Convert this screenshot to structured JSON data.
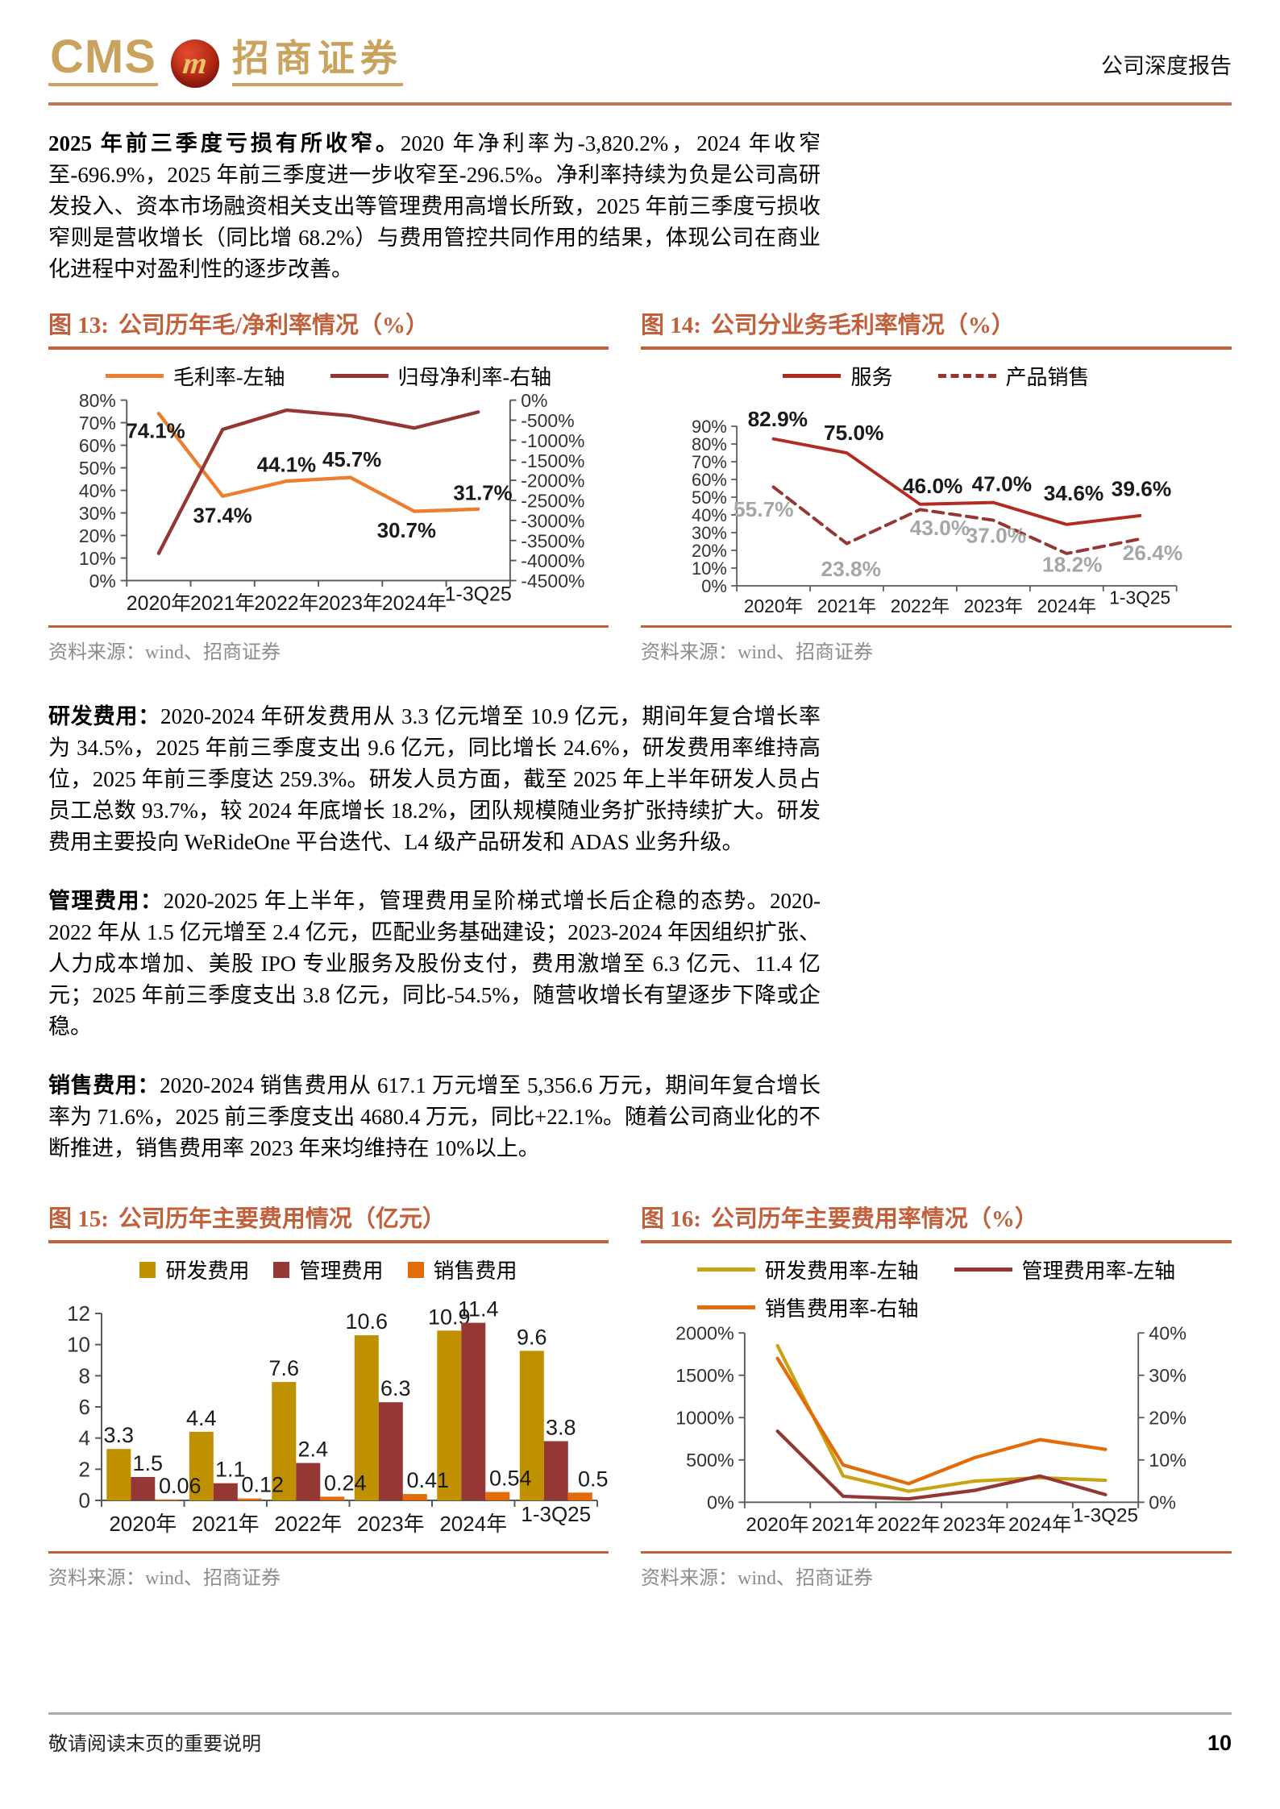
{
  "header": {
    "logo_cms": "CMS",
    "logo_m": "m",
    "logo_cn": "招商证券",
    "report_type": "公司深度报告"
  },
  "colors": {
    "accent_title": "#C2603C",
    "header_rule": "#C2745B",
    "logo_gold": "#C9A25E",
    "gray_label": "#A6A6A6"
  },
  "paragraphs": [
    {
      "lead": "2025 年前三季度亏损有所收窄。",
      "body": "2020 年净利率为-3,820.2%，2024 年收窄至-696.9%，2025 年前三季度进一步收窄至-296.5%。净利率持续为负是公司高研发投入、资本市场融资相关支出等管理费用高增长所致，2025 年前三季度亏损收窄则是营收增长（同比增 68.2%）与费用管控共同作用的结果，体现公司在商业化进程中对盈利性的逐步改善。"
    },
    {
      "lead": "研发费用：",
      "body": "2020-2024 年研发费用从 3.3 亿元增至 10.9 亿元，期间年复合增长率为 34.5%，2025 年前三季度支出 9.6 亿元，同比增长 24.6%，研发费用率维持高位，2025 年前三季度达 259.3%。研发人员方面，截至 2025 年上半年研发人员占员工总数 93.7%，较 2024 年底增长 18.2%，团队规模随业务扩张持续扩大。研发费用主要投向 WeRideOne 平台迭代、L4 级产品研发和 ADAS 业务升级。"
    },
    {
      "lead": "管理费用：",
      "body": "2020-2025 年上半年，管理费用呈阶梯式增长后企稳的态势。2020-2022 年从 1.5 亿元增至 2.4 亿元，匹配业务基础建设；2023-2024 年因组织扩张、人力成本增加、美股 IPO 专业服务及股份支付，费用激增至 6.3 亿元、11.4 亿元；2025 年前三季度支出 3.8 亿元，同比-54.5%，随营收增长有望逐步下降或企稳。"
    },
    {
      "lead": "销售费用：",
      "body": "2020-2024 销售费用从 617.1 万元增至 5,356.6 万元，期间年复合增长率为 71.6%，2025 前三季度支出 4680.4 万元，同比+22.1%。随着公司商业化的不断推进，销售费用率 2023 年来均维持在 10%以上。"
    }
  ],
  "chart_data": [
    {
      "type": "line",
      "fig_label": "图 13:",
      "title": "公司历年毛/净利率情况（%）",
      "source": "资料来源：wind、招商证券",
      "categories": [
        "2020年",
        "2021年",
        "2022年",
        "2023年",
        "2024年",
        "1-3Q25"
      ],
      "left_axis": {
        "min": 0,
        "max": 80,
        "step": 10,
        "suffix": "%"
      },
      "right_axis": {
        "min": -4500,
        "max": 0,
        "step": 500,
        "suffix": "%"
      },
      "grid": false,
      "legend_position": "top",
      "series": [
        {
          "name": "毛利率-左轴",
          "axis": "left",
          "color": "#ED7D31",
          "dash": false,
          "values": [
            74.1,
            37.4,
            44.1,
            45.7,
            30.7,
            31.7
          ],
          "labels": [
            "74.1%",
            "37.4%",
            "44.1%",
            "45.7%",
            "30.7%",
            "31.7%"
          ]
        },
        {
          "name": "归母净利率-右轴",
          "axis": "right",
          "color": "#943634",
          "dash": false,
          "values": [
            -3820.2,
            -730,
            -250,
            -390,
            -696.9,
            -296.5
          ]
        }
      ]
    },
    {
      "type": "line",
      "fig_label": "图 14:",
      "title": "公司分业务毛利率情况（%）",
      "source": "资料来源：wind、招商证券",
      "categories": [
        "2020年",
        "2021年",
        "2022年",
        "2023年",
        "2024年",
        "1-3Q25"
      ],
      "left_axis": {
        "min": 0,
        "max": 90,
        "step": 10,
        "suffix": "%"
      },
      "grid": false,
      "legend_position": "top",
      "series": [
        {
          "name": "服务",
          "axis": "left",
          "color": "#B22A20",
          "dash": false,
          "values": [
            82.9,
            75.0,
            46.0,
            47.0,
            34.6,
            39.6
          ],
          "labels": [
            "82.9%",
            "75.0%",
            "46.0%",
            "47.0%",
            "34.6%",
            "39.6%"
          ],
          "label_color": "#1a1a1a"
        },
        {
          "name": "产品销售",
          "axis": "left",
          "color": "#943634",
          "dash": true,
          "values": [
            55.7,
            23.8,
            43.0,
            37.0,
            18.2,
            26.4
          ],
          "labels": [
            "55.7%",
            "23.8%",
            "43.0%",
            "37.0%",
            "18.2%",
            "26.4%"
          ],
          "label_color": "#A6A6A6"
        }
      ]
    },
    {
      "type": "bar",
      "fig_label": "图 15:",
      "title": "公司历年主要费用情况（亿元）",
      "source": "资料来源：wind、招商证券",
      "categories": [
        "2020年",
        "2021年",
        "2022年",
        "2023年",
        "2024年",
        "1-3Q25"
      ],
      "left_axis": {
        "min": 0,
        "max": 12,
        "step": 2,
        "suffix": ""
      },
      "grid": false,
      "legend_position": "top",
      "series": [
        {
          "name": "研发费用",
          "color": "#BF9000",
          "values": [
            3.3,
            4.4,
            7.6,
            10.6,
            10.9,
            9.6
          ],
          "labels": [
            "3.3",
            "4.4",
            "7.6",
            "10.6",
            "10.9",
            "9.6"
          ]
        },
        {
          "name": "管理费用",
          "color": "#953735",
          "values": [
            1.5,
            1.1,
            2.4,
            6.3,
            11.4,
            3.8
          ],
          "labels": [
            "1.5",
            "1.1",
            "2.4",
            "6.3",
            "11.4",
            "3.8"
          ]
        },
        {
          "name": "销售费用",
          "color": "#E36C09",
          "values": [
            0.06,
            0.12,
            0.24,
            0.41,
            0.54,
            0.5
          ],
          "labels": [
            "0.06",
            "0.12",
            "0.24",
            "0.41",
            "0.54",
            "0.5"
          ]
        }
      ]
    },
    {
      "type": "line",
      "fig_label": "图 16:",
      "title": "公司历年主要费用率情况（%）",
      "source": "资料来源：wind、招商证券",
      "categories": [
        "2020年",
        "2021年",
        "2022年",
        "2023年",
        "2024年",
        "1-3Q25"
      ],
      "left_axis": {
        "min": 0,
        "max": 2000,
        "step": 500,
        "suffix": "%"
      },
      "right_axis": {
        "min": 0,
        "max": 40,
        "step": 10,
        "suffix": "%"
      },
      "grid": false,
      "legend_position": "top",
      "series": [
        {
          "name": "研发费用率-左轴",
          "axis": "left",
          "color": "#C8A415",
          "dash": false,
          "values": [
            1850,
            310,
            130,
            250,
            290,
            259.3
          ]
        },
        {
          "name": "管理费用率-左轴",
          "axis": "left",
          "color": "#943634",
          "dash": false,
          "values": [
            840,
            70,
            40,
            140,
            310,
            90
          ]
        },
        {
          "name": "销售费用率-右轴",
          "axis": "right",
          "color": "#E36C09",
          "dash": false,
          "values": [
            34,
            8.8,
            4.4,
            10.5,
            14.8,
            12.5
          ]
        }
      ]
    }
  ],
  "footer": {
    "disclaimer": "敬请阅读末页的重要说明",
    "page_number": "10"
  }
}
